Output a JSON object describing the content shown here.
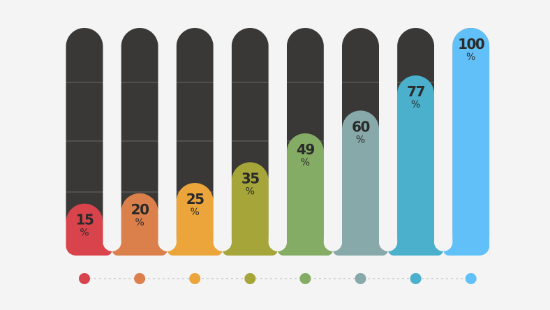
{
  "chart_data": {
    "type": "bar",
    "title": "",
    "xlabel": "",
    "ylabel": "",
    "ylim": [
      0,
      100
    ],
    "grid": true,
    "unit": "%",
    "values": [
      15,
      20,
      25,
      35,
      49,
      60,
      77,
      100
    ],
    "labels": [
      "15",
      "20",
      "25",
      "35",
      "49",
      "60",
      "77",
      "100"
    ],
    "colors": [
      "#d9434b",
      "#dc804b",
      "#eba53a",
      "#a5a539",
      "#84ac64",
      "#87a9a9",
      "#4ab0cc",
      "#62c0f8"
    ],
    "track_color": "#393836",
    "background": "#f4f4f4"
  }
}
